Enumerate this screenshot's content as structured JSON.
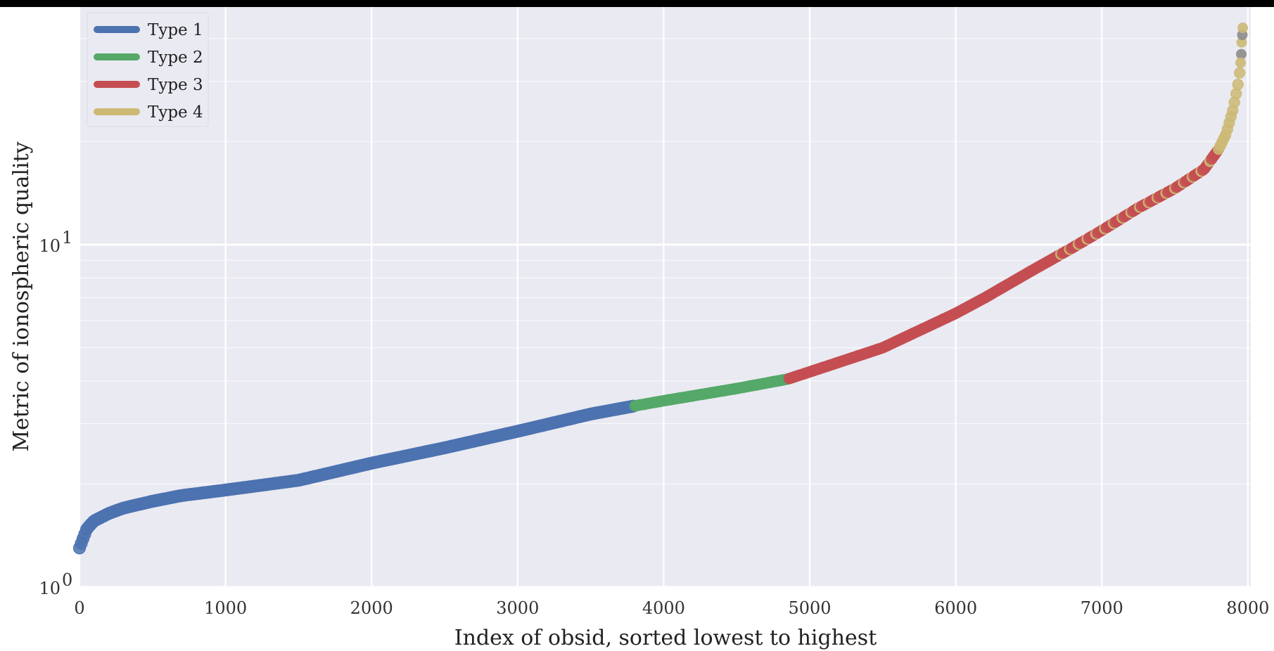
{
  "chart_data": {
    "type": "scatter",
    "xlabel": "Index of obsid, sorted lowest to highest",
    "ylabel": "Metric of ionospheric quality",
    "xlim": [
      0,
      8020
    ],
    "ylim": [
      1,
      40
    ],
    "yscale": "log",
    "grid": true,
    "legend_position": "top-left",
    "x_ticks": [
      0,
      1000,
      2000,
      3000,
      4000,
      5000,
      6000,
      7000,
      8000
    ],
    "y_ticks": [
      {
        "value": 1,
        "base": "10",
        "exp": "0"
      },
      {
        "value": 10,
        "base": "10",
        "exp": "1"
      }
    ],
    "curve": {
      "x": [
        0,
        50,
        100,
        200,
        300,
        400,
        500,
        700,
        1000,
        1500,
        2000,
        2500,
        3000,
        3500,
        3800,
        4000,
        4500,
        4850,
        5000,
        5500,
        6000,
        6200,
        6500,
        6800,
        7000,
        7250,
        7500,
        7700,
        7800,
        7850,
        7900,
        7930,
        7950
      ],
      "y": [
        1.3,
        1.48,
        1.56,
        1.64,
        1.7,
        1.74,
        1.78,
        1.85,
        1.92,
        2.05,
        2.3,
        2.55,
        2.85,
        3.2,
        3.38,
        3.5,
        3.8,
        4.05,
        4.25,
        5.0,
        6.3,
        7.0,
        8.3,
        9.8,
        11.0,
        12.8,
        14.6,
        16.6,
        19.0,
        21.0,
        25.0,
        29.0,
        33.0
      ]
    },
    "series": [
      {
        "name": "Type 1",
        "color": "#4c72b0",
        "x_range": [
          0,
          3800
        ]
      },
      {
        "name": "Type 2",
        "color": "#55a868",
        "x_range": [
          3800,
          6400
        ]
      },
      {
        "name": "Type 3",
        "color": "#c44e52",
        "x_range": [
          4850,
          7800
        ]
      },
      {
        "name": "Type 4",
        "color": "#ccb974",
        "x_range": [
          6700,
          7960
        ]
      }
    ]
  }
}
